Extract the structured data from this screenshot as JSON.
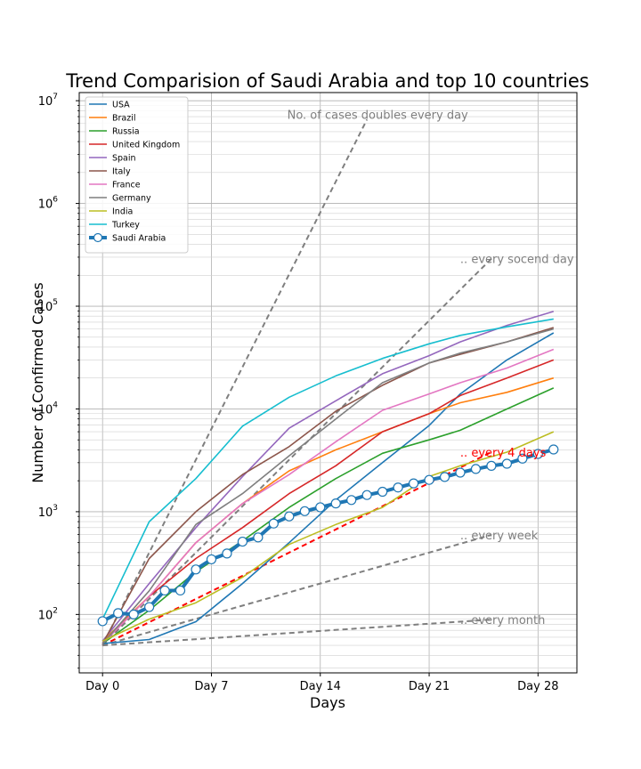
{
  "chart_data": {
    "type": "line",
    "title": "Trend Comparision of Saudi Arabia and top 10 countries",
    "xlabel": "Days",
    "ylabel": "Number of Confirmed Cases",
    "yscale": "log",
    "xlim": [
      -1.5,
      30.5
    ],
    "ylim": [
      27,
      12000000
    ],
    "grid": "major and minor",
    "legend_position": "top-left",
    "x_ticks": [
      {
        "value": 0,
        "label": "Day 0"
      },
      {
        "value": 7,
        "label": "Day 7"
      },
      {
        "value": 14,
        "label": "Day 14"
      },
      {
        "value": 21,
        "label": "Day 21"
      },
      {
        "value": 28,
        "label": "Day 28"
      }
    ],
    "y_ticks": [
      {
        "value": 100,
        "base": "10",
        "exp": "2"
      },
      {
        "value": 1000,
        "base": "10",
        "exp": "3"
      },
      {
        "value": 10000,
        "base": "10",
        "exp": "4"
      },
      {
        "value": 100000,
        "base": "10",
        "exp": "5"
      },
      {
        "value": 1000000,
        "base": "10",
        "exp": "6"
      },
      {
        "value": 10000000,
        "base": "10",
        "exp": "7"
      }
    ],
    "series": [
      {
        "name": "USA",
        "color": "#1f77b4",
        "x": [
          0,
          3,
          6,
          9,
          12,
          15,
          18,
          21,
          23,
          26,
          29
        ],
        "y": [
          52,
          57,
          85,
          200,
          500,
          1300,
          3000,
          6900,
          14000,
          30000,
          55000
        ]
      },
      {
        "name": "Brazil",
        "color": "#ff7f0e",
        "x": [
          0,
          3,
          6,
          9,
          12,
          15,
          18,
          21,
          23,
          26,
          29
        ],
        "y": [
          55,
          150,
          500,
          1200,
          2500,
          4000,
          6000,
          9000,
          11500,
          14500,
          20000
        ]
      },
      {
        "name": "Russia",
        "color": "#2ca02c",
        "x": [
          0,
          3,
          6,
          9,
          12,
          15,
          18,
          21,
          23,
          26,
          29
        ],
        "y": [
          52,
          110,
          260,
          520,
          1100,
          2100,
          3700,
          5000,
          6200,
          10000,
          16000
        ]
      },
      {
        "name": "United Kingdom",
        "color": "#d62728",
        "x": [
          0,
          3,
          6,
          9,
          12,
          15,
          18,
          21,
          23,
          26,
          29
        ],
        "y": [
          52,
          150,
          350,
          700,
          1500,
          2800,
          6000,
          9000,
          13500,
          20000,
          30000
        ]
      },
      {
        "name": "Spain",
        "color": "#9467bd",
        "x": [
          0,
          3,
          6,
          9,
          12,
          15,
          18,
          21,
          23,
          26,
          29
        ],
        "y": [
          55,
          200,
          700,
          2200,
          6500,
          12000,
          22000,
          33000,
          45000,
          65000,
          89000
        ]
      },
      {
        "name": "Italy",
        "color": "#8c564b",
        "x": [
          0,
          3,
          6,
          9,
          12,
          15,
          18,
          21,
          23,
          26,
          29
        ],
        "y": [
          52,
          350,
          1000,
          2300,
          4300,
          9500,
          17000,
          28000,
          34000,
          45000,
          62000
        ]
      },
      {
        "name": "France",
        "color": "#e377c2",
        "x": [
          0,
          3,
          6,
          9,
          12,
          15,
          18,
          21,
          23,
          26,
          29
        ],
        "y": [
          52,
          150,
          500,
          1200,
          2300,
          4800,
          9700,
          14000,
          18000,
          25000,
          38000
        ]
      },
      {
        "name": "Germany",
        "color": "#7f7f7f",
        "x": [
          0,
          3,
          6,
          9,
          12,
          15,
          18,
          21,
          23,
          26,
          29
        ],
        "y": [
          52,
          170,
          750,
          1500,
          3500,
          8000,
          18000,
          28000,
          35000,
          45000,
          60000
        ]
      },
      {
        "name": "India",
        "color": "#bcbd22",
        "x": [
          0,
          3,
          6,
          9,
          12,
          15,
          18,
          21,
          23,
          26,
          29
        ],
        "y": [
          55,
          90,
          130,
          230,
          480,
          750,
          1100,
          2200,
          2800,
          3800,
          6000
        ]
      },
      {
        "name": "Turkey",
        "color": "#17becf",
        "x": [
          0,
          3,
          6,
          9,
          12,
          15,
          18,
          21,
          23,
          26,
          29
        ],
        "y": [
          90,
          800,
          2100,
          6800,
          13000,
          21000,
          31000,
          43000,
          52000,
          63000,
          75000
        ]
      },
      {
        "name": "Saudi Arabia",
        "color": "#1f77b4",
        "marker": "circle",
        "x": [
          0,
          1,
          2,
          3,
          4,
          5,
          6,
          7,
          8,
          9,
          10,
          11,
          12,
          13,
          14,
          15,
          16,
          17,
          18,
          19,
          20,
          21,
          22,
          23,
          24,
          25,
          26,
          27,
          28,
          29
        ],
        "y": [
          86,
          103,
          100,
          118,
          171,
          171,
          274,
          344,
          392,
          511,
          562,
          767,
          900,
          1012,
          1104,
          1203,
          1299,
          1453,
          1563,
          1720,
          1885,
          2039,
          2179,
          2402,
          2605,
          2795,
          2932,
          3287,
          3651,
          4033
        ]
      }
    ],
    "reference_lines": [
      {
        "label": "No. of cases doubles every day",
        "doubling_days": 1,
        "x_end": 17,
        "color": "#7f7f7f",
        "style": "dashed"
      },
      {
        "label": ".. every socend day",
        "doubling_days": 2,
        "x_end": 25,
        "color": "#7f7f7f",
        "style": "dashed"
      },
      {
        "label": ".. every 4 days",
        "doubling_days": 4,
        "x_end": 25,
        "color": "#ff0000",
        "style": "dashed"
      },
      {
        "label": ".. every week",
        "doubling_days": 7,
        "x_end": 25,
        "color": "#7f7f7f",
        "style": "dashed"
      },
      {
        "label": ".. every month",
        "doubling_days": 30,
        "x_end": 25,
        "color": "#7f7f7f",
        "style": "dashed"
      }
    ],
    "reference_start_value": 50
  }
}
